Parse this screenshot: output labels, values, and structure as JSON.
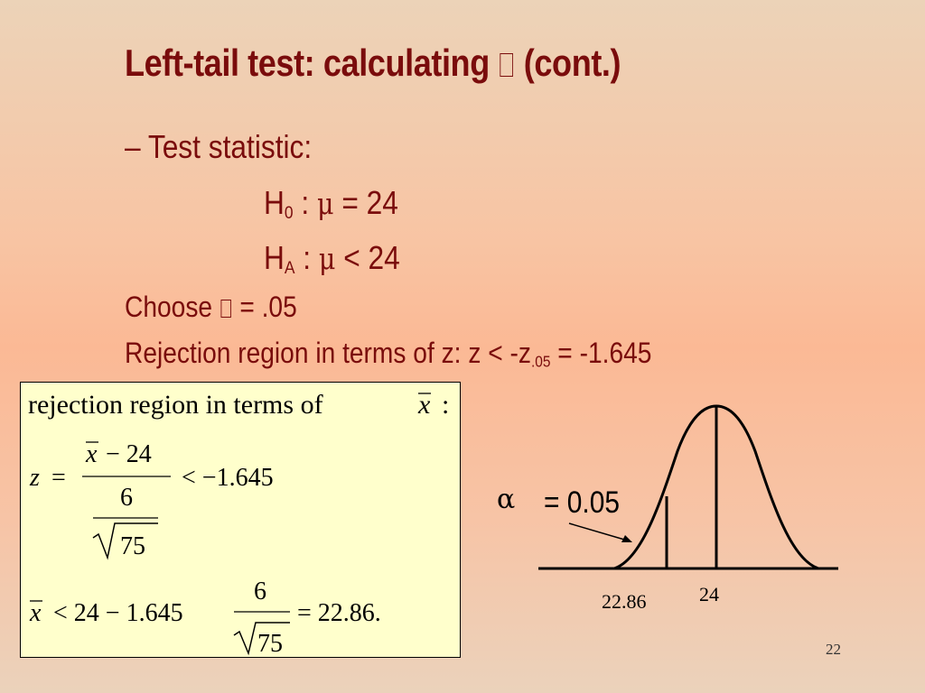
{
  "slide": {
    "title": "Left-tail test: calculating",
    "title_suffix": "(cont.)",
    "line1": "– Test statistic:",
    "h0_pre": "H",
    "h0_sub": "0",
    "h0_mid": " : ",
    "h0_mu": "μ",
    "h0_post": " = 24",
    "ha_pre": "H",
    "ha_sub": "A",
    "ha_mid": " : ",
    "ha_mu": "μ",
    "ha_post": " < 24",
    "choose_pre": "Choose",
    "choose_post": " = .05",
    "rejection_pre": "Rejection region in terms of z: z < -z",
    "rejection_sub": ".05",
    "rejection_post": " = -1.645",
    "page_number": "22"
  },
  "formula": {
    "heading": "rejection region in terms of",
    "heading_var": "x",
    "heading_colon": ":",
    "z_var": "z",
    "equals": "=",
    "numerator": "− 24",
    "numerator_var": "x",
    "denominator_top": "6",
    "denominator_root": "75",
    "inequality": "< −1.645",
    "line3_var": "x",
    "line3_mid": "< 24 − 1.645",
    "line3_frac_top": "6",
    "line3_frac_root": "75",
    "line3_result": "= 22.86."
  },
  "diagram": {
    "alpha_symbol": "α",
    "alpha_value": "= 0.05",
    "label_left": "22.86",
    "label_center": "24"
  }
}
